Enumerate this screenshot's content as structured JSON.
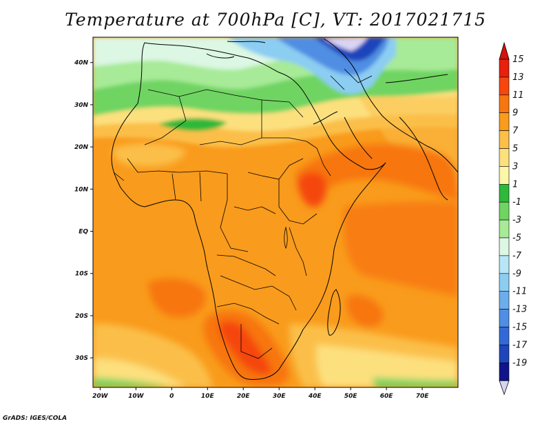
{
  "title": "Temperature at 700hPa [C], VT: 2017021715",
  "credit": "GrADS: IGES/COLA",
  "map": {
    "lat_labels": [
      "40N",
      "30N",
      "20N",
      "10N",
      "EQ",
      "10S",
      "20S",
      "30S"
    ],
    "lat_values": [
      40,
      30,
      20,
      10,
      0,
      -10,
      -20,
      -30
    ],
    "lon_labels": [
      "20W",
      "10W",
      "0",
      "10E",
      "20E",
      "30E",
      "40E",
      "50E",
      "60E",
      "70E"
    ],
    "lon_values": [
      -20,
      -10,
      0,
      10,
      20,
      30,
      40,
      50,
      60,
      70
    ],
    "lon_range": [
      -22,
      80
    ],
    "lat_range": [
      -37,
      46
    ]
  },
  "colorbar": {
    "labels": [
      "15",
      "13",
      "11",
      "9",
      "7",
      "5",
      "3",
      "1",
      "-1",
      "-3",
      "-5",
      "-7",
      "-9",
      "-11",
      "-13",
      "-15",
      "-17",
      "-19"
    ],
    "colors": [
      "#e8200e",
      "#f5470e",
      "#f7760f",
      "#f99b1c",
      "#fbbf4a",
      "#fde07e",
      "#fef6a8",
      "#2fb83a",
      "#6fd462",
      "#a7ea97",
      "#dcf7e3",
      "#b7e6f6",
      "#8ccdf2",
      "#6cadeb",
      "#4f8ee3",
      "#3369d7",
      "#1f45bb",
      "#10148a"
    ],
    "over_color": "#d4130c",
    "under_color": "#d8d4f4"
  }
}
